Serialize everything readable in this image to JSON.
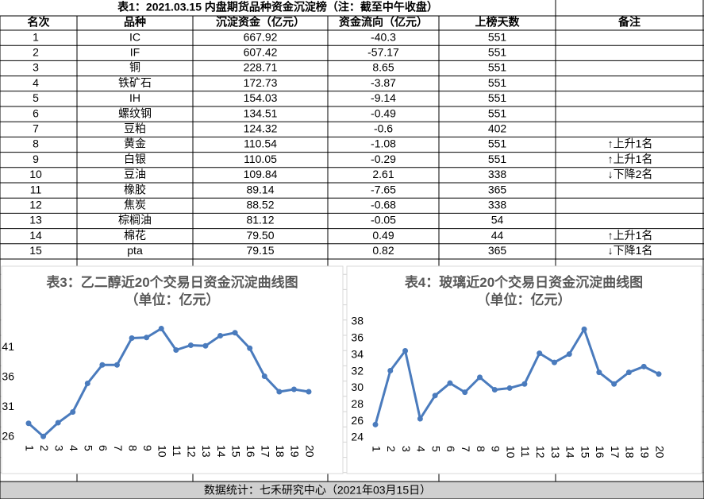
{
  "table": {
    "title": "表1：2021.03.15 内盘期货品种资金沉淀榜（注：截至中午收盘）",
    "header": [
      "名次",
      "品种",
      "沉淀资金（亿元）",
      "资金流向（亿元）",
      "上榜天数",
      "备注"
    ],
    "rows": [
      [
        "1",
        "IC",
        "667.92",
        "-40.3",
        "551",
        null
      ],
      [
        "2",
        "IF",
        "607.42",
        "-57.17",
        "551",
        null
      ],
      [
        "3",
        "铜",
        "228.71",
        "8.65",
        "551",
        null
      ],
      [
        "4",
        "铁矿石",
        "172.73",
        "-3.87",
        "551",
        null
      ],
      [
        "5",
        "IH",
        "154.03",
        "-9.14",
        "551",
        null
      ],
      [
        "6",
        "螺纹钢",
        "134.51",
        "-0.49",
        "551",
        null
      ],
      [
        "7",
        "豆粕",
        "124.32",
        "-0.6",
        "402",
        null
      ],
      [
        "8",
        "黄金",
        "110.54",
        "-1.08",
        "551",
        "↑上升1名"
      ],
      [
        "9",
        "白银",
        "110.05",
        "-0.29",
        "551",
        "↑上升1名"
      ],
      [
        "10",
        "豆油",
        "109.84",
        "2.61",
        "338",
        "↓下降2名"
      ],
      [
        "11",
        "橡胶",
        "89.14",
        "-7.65",
        "365",
        null
      ],
      [
        "12",
        "焦炭",
        "88.52",
        "-0.68",
        "338",
        null
      ],
      [
        "13",
        "棕榈油",
        "81.12",
        "-0.05",
        "54",
        null
      ],
      [
        "14",
        "棉花",
        "79.50",
        "0.49",
        "44",
        "↑上升1名"
      ],
      [
        "15",
        "pta",
        "79.15",
        "0.82",
        "365",
        "↓下降1名"
      ]
    ]
  },
  "chart_data": [
    {
      "type": "line",
      "title": "表3：乙二醇近20个交易日资金沉淀曲线图（单位：亿元）",
      "categories": [
        "1",
        "2",
        "3",
        "4",
        "5",
        "6",
        "7",
        "8",
        "9",
        "10",
        "11",
        "12",
        "13",
        "14",
        "15",
        "16",
        "17",
        "18",
        "19",
        "20"
      ],
      "series": [
        {
          "color": "#4a7bbd",
          "values": [
            28.3,
            26.1,
            28.4,
            30.2,
            35.0,
            38.1,
            38.1,
            42.6,
            42.7,
            44.2,
            40.6,
            41.4,
            41.3,
            43.0,
            43.5,
            40.9,
            36.2,
            33.6,
            34.0,
            33.6
          ]
        }
      ],
      "ylim": [
        26,
        46
      ],
      "yticks": [
        26,
        31,
        36,
        41
      ]
    },
    {
      "type": "line",
      "title": "表4：玻璃近20个交易日资金沉淀曲线图（单位：亿元）",
      "categories": [
        "1",
        "2",
        "3",
        "4",
        "5",
        "6",
        "7",
        "8",
        "9",
        "10",
        "11",
        "12",
        "13",
        "14",
        "15",
        "16",
        "17",
        "18",
        "19",
        "20"
      ],
      "series": [
        {
          "color": "#4a7bbd",
          "values": [
            25.6,
            32.1,
            34.5,
            26.3,
            29.1,
            30.6,
            29.5,
            31.3,
            29.8,
            30.0,
            30.5,
            34.2,
            33.1,
            34.1,
            37.1,
            31.9,
            30.5,
            31.9,
            32.6,
            31.7
          ]
        }
      ],
      "ylim": [
        24,
        38
      ],
      "yticks": [
        24,
        26,
        28,
        30,
        32,
        34,
        36,
        38
      ]
    }
  ],
  "footer": "数据统计：七禾研究中心（2021年03月15日）"
}
